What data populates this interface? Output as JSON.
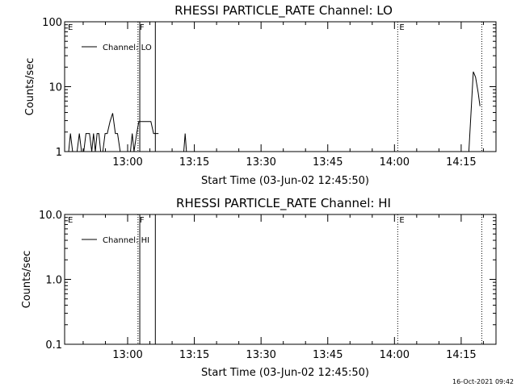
{
  "footer": {
    "timestamp": "16-Oct-2021 09:42"
  },
  "chart_data": [
    {
      "type": "line",
      "title": "RHESSI PARTICLE_RATE Channel: LO",
      "xlabel": "Start Time (03-Jun-02 12:45:50)",
      "ylabel": "Counts/sec",
      "yscale": "log",
      "ylim": [
        1,
        100
      ],
      "y_ticks": [
        {
          "value": 1,
          "label": "1"
        },
        {
          "value": 10,
          "label": "10"
        },
        {
          "value": 100,
          "label": "100"
        }
      ],
      "x_unit": "minutes after 12:45:50",
      "xlim": [
        0,
        97
      ],
      "x_ticks": [
        {
          "value": 14.17,
          "label": "13:00"
        },
        {
          "value": 29.17,
          "label": "13:15"
        },
        {
          "value": 44.17,
          "label": "13:30"
        },
        {
          "value": 59.17,
          "label": "13:45"
        },
        {
          "value": 74.17,
          "label": "14:00"
        },
        {
          "value": 89.17,
          "label": "14:15"
        }
      ],
      "legend": {
        "placement": "top-left",
        "entries": [
          "Channel: LO"
        ]
      },
      "flags": [
        {
          "label": "E",
          "x": 0,
          "style": "none"
        },
        {
          "label": "F",
          "x": 16.5,
          "style": "dotted"
        },
        {
          "label": "",
          "x": 16.9,
          "style": "solid"
        },
        {
          "label": "",
          "x": 20.4,
          "style": "solid"
        },
        {
          "label": "E",
          "x": 74.9,
          "style": "dotted"
        },
        {
          "label": "",
          "x": 93.8,
          "style": "dotted"
        }
      ],
      "series": [
        {
          "name": "Channel: LO",
          "segments": [
            [
              [
                0.9,
                1
              ],
              [
                1.3,
                1.9
              ],
              [
                1.8,
                1
              ],
              [
                2.8,
                1
              ],
              [
                3.3,
                1.9
              ],
              [
                3.8,
                1
              ],
              [
                4.3,
                1
              ],
              [
                4.8,
                1.9
              ],
              [
                5.6,
                1.9
              ],
              [
                6.1,
                1
              ],
              [
                6.5,
                1.9
              ],
              [
                6.9,
                1
              ],
              [
                7.3,
                1.9
              ],
              [
                7.7,
                1.9
              ],
              [
                8.1,
                1
              ],
              [
                8.6,
                1
              ],
              [
                9.1,
                1.9
              ],
              [
                9.6,
                1.9
              ],
              [
                10.2,
                2.9
              ],
              [
                10.8,
                3.9
              ],
              [
                11.4,
                1.9
              ],
              [
                11.9,
                1.9
              ],
              [
                12.5,
                1
              ]
            ],
            [
              [
                14.8,
                1
              ],
              [
                15.2,
                1.9
              ],
              [
                15.6,
                1
              ],
              [
                16.2,
                1.9
              ],
              [
                16.7,
                2.9
              ],
              [
                18.5,
                2.9
              ],
              [
                19.4,
                2.9
              ],
              [
                20.0,
                1.9
              ],
              [
                21.1,
                1.9
              ]
            ],
            [
              [
                26.8,
                1
              ],
              [
                27.1,
                1.9
              ],
              [
                27.4,
                1
              ]
            ],
            [
              [
                90.9,
                1
              ],
              [
                91.9,
                17
              ],
              [
                92.4,
                14
              ],
              [
                93.0,
                8
              ],
              [
                93.4,
                5
              ]
            ]
          ]
        }
      ]
    },
    {
      "type": "line",
      "title": "RHESSI PARTICLE_RATE Channel: HI",
      "xlabel": "Start Time (03-Jun-02 12:45:50)",
      "ylabel": "Counts/sec",
      "yscale": "log",
      "ylim": [
        0.1,
        10
      ],
      "y_ticks": [
        {
          "value": 0.1,
          "label": "0.1"
        },
        {
          "value": 1,
          "label": "1.0"
        },
        {
          "value": 10,
          "label": "10.0"
        }
      ],
      "x_unit": "minutes after 12:45:50",
      "xlim": [
        0,
        97
      ],
      "x_ticks": [
        {
          "value": 14.17,
          "label": "13:00"
        },
        {
          "value": 29.17,
          "label": "13:15"
        },
        {
          "value": 44.17,
          "label": "13:30"
        },
        {
          "value": 59.17,
          "label": "13:45"
        },
        {
          "value": 74.17,
          "label": "14:00"
        },
        {
          "value": 89.17,
          "label": "14:15"
        }
      ],
      "legend": {
        "placement": "top-left",
        "entries": [
          "Channel: HI"
        ]
      },
      "flags": [
        {
          "label": "E",
          "x": 0,
          "style": "none"
        },
        {
          "label": "F",
          "x": 16.5,
          "style": "dotted"
        },
        {
          "label": "",
          "x": 16.9,
          "style": "solid"
        },
        {
          "label": "",
          "x": 20.4,
          "style": "solid"
        },
        {
          "label": "E",
          "x": 74.9,
          "style": "dotted"
        },
        {
          "label": "",
          "x": 93.8,
          "style": "dotted"
        }
      ],
      "series": [
        {
          "name": "Channel: HI",
          "segments": []
        }
      ]
    }
  ]
}
